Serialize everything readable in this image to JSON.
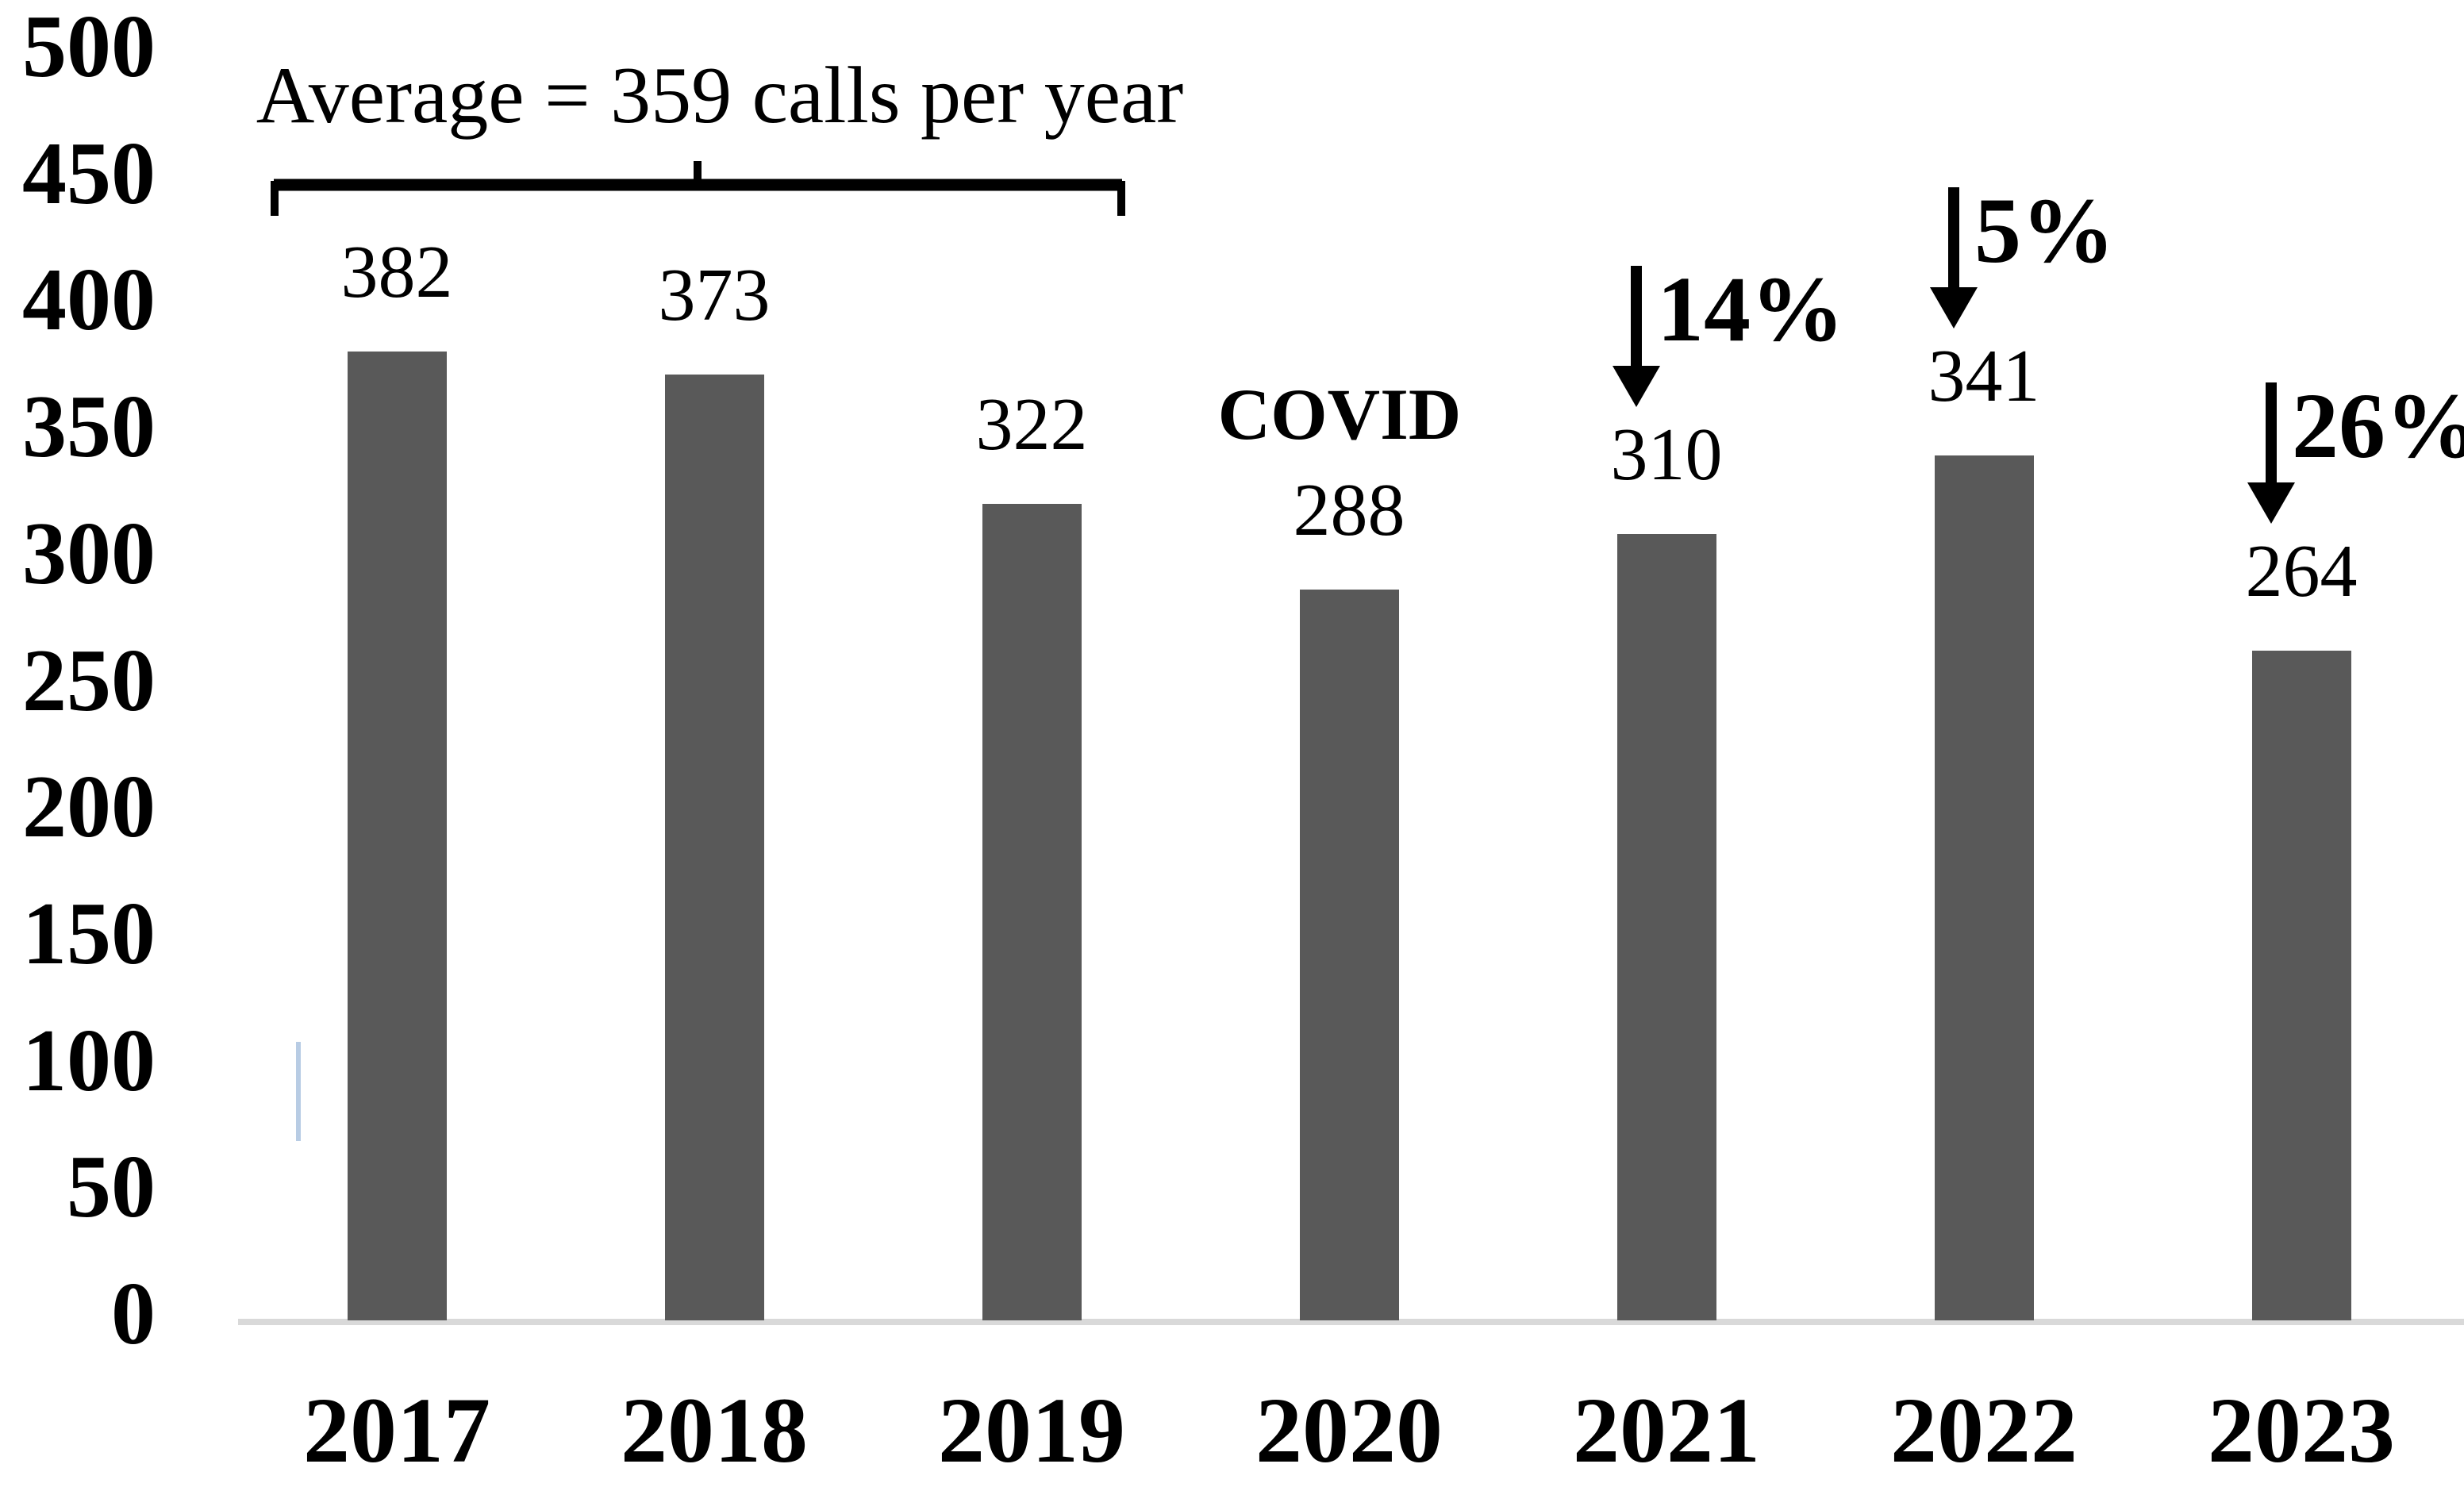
{
  "chart_data": {
    "type": "bar",
    "title": "",
    "xlabel": "",
    "ylabel": "",
    "categories": [
      "2017",
      "2018",
      "2019",
      "2020",
      "2021",
      "2022",
      "2023"
    ],
    "values": [
      382,
      373,
      322,
      288,
      310,
      341,
      264
    ],
    "value_labels": [
      "382",
      "373",
      "322",
      "288",
      "310",
      "341",
      "264"
    ],
    "y_ticks": [
      500,
      450,
      400,
      350,
      300,
      250,
      200,
      150,
      100,
      50,
      0
    ],
    "ylim": [
      0,
      500
    ],
    "grid": "off",
    "legend": "none",
    "bar_color": "#595959",
    "axis_line_color": "#d9d9d9",
    "artifact_line_color": "#b8cce4",
    "annotations": {
      "average_label": "Average = 359 calls per year",
      "average_span_years": [
        "2017",
        "2018",
        "2019"
      ],
      "covid_label": "COVID",
      "covid_year": "2020",
      "drops": [
        {
          "year": "2021",
          "label": "14%"
        },
        {
          "year": "2022",
          "label": "5%"
        },
        {
          "year": "2023",
          "label": "26%"
        }
      ]
    }
  }
}
